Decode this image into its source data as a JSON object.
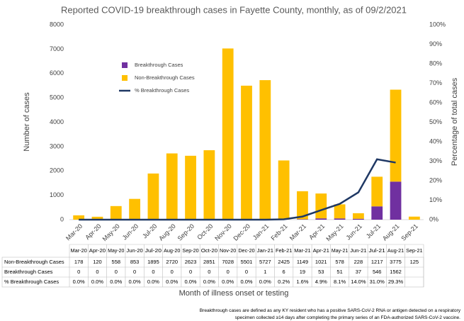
{
  "chart_data": {
    "type": "bar",
    "title": "Reported COVID-19 breakthrough cases in Fayette County, monthly, as of 09/2/2021",
    "y_label": "Number of cases",
    "y2_label": "Percentage of total cases",
    "x_label": "Month of illness onset or testing",
    "categories": [
      "Mar-20",
      "Apr-20",
      "May-20",
      "Jun-20",
      "Jul-20",
      "Aug-20",
      "Sep-20",
      "Oct-20",
      "Nov-20",
      "Dec-20",
      "Jan-21",
      "Feb-21",
      "Mar-21",
      "Apr-21",
      "May-21",
      "Jun-21",
      "Jul-21",
      "Aug-21",
      "Sep-21"
    ],
    "series": [
      {
        "name": "Non-Breakthrough Cases",
        "color": "#ffc000",
        "values": [
          178,
          120,
          558,
          853,
          1895,
          2720,
          2623,
          2851,
          7028,
          5501,
          5727,
          2425,
          1149,
          1021,
          578,
          228,
          1217,
          3775,
          125
        ]
      },
      {
        "name": "Breakthrough Cases",
        "color": "#7030a0",
        "values": [
          0,
          0,
          0,
          0,
          0,
          0,
          0,
          0,
          0,
          0,
          1,
          6,
          19,
          53,
          51,
          37,
          546,
          1562,
          null
        ]
      },
      {
        "name": "% Breakthrough Cases",
        "color": "#1f3864",
        "axis": "y2",
        "type": "line",
        "values": [
          0.0,
          0.0,
          0.0,
          0.0,
          0.0,
          0.0,
          0.0,
          0.0,
          0.0,
          0.0,
          0.0,
          0.2,
          1.6,
          4.9,
          8.1,
          14.0,
          31.0,
          29.3,
          null
        ],
        "value_labels": [
          "0.0%",
          "0.0%",
          "0.0%",
          "0.0%",
          "0.0%",
          "0.0%",
          "0.0%",
          "0.0%",
          "0.0%",
          "0.0%",
          "0.0%",
          "0.2%",
          "1.6%",
          "4.9%",
          "8.1%",
          "14.0%",
          "31.0%",
          "29.3%",
          null
        ]
      }
    ],
    "ylim": [
      0,
      8000
    ],
    "yticks": [
      0,
      1000,
      2000,
      3000,
      4000,
      5000,
      6000,
      7000,
      8000
    ],
    "y2lim": [
      0,
      100
    ],
    "y2ticks": [
      {
        "value": 0,
        "label": "0%"
      },
      {
        "value": 10,
        "label": "10%"
      },
      {
        "value": 20,
        "label": "20%"
      },
      {
        "value": 30,
        "label": "30%"
      },
      {
        "value": 40,
        "label": "40%"
      },
      {
        "value": 50,
        "label": "50%"
      },
      {
        "value": 60,
        "label": "60%"
      },
      {
        "value": 70,
        "label": "70%"
      },
      {
        "value": 80,
        "label": "80%"
      },
      {
        "value": 90,
        "label": "90%"
      },
      {
        "value": 100,
        "label": "100%"
      }
    ],
    "notes": [
      "Breakthrough cases are defined as any KY resident who has a positive SARS-CoV-2 RNA or antigen detected on a respiratory",
      "specimen collected ≥14 days after completing the primary series of an FDA-authorized SARS-CoV-2 vaccine."
    ]
  }
}
